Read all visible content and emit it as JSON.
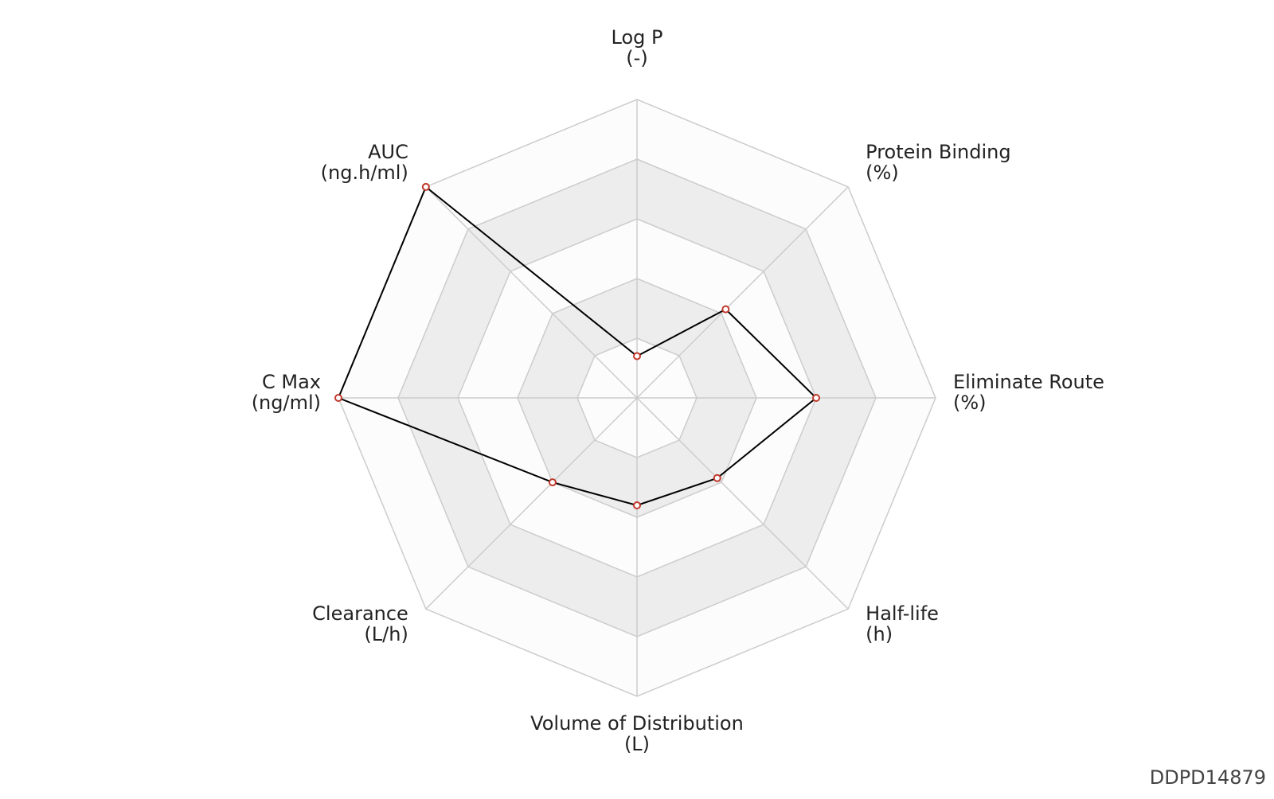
{
  "chart_data": {
    "type": "radar",
    "categories": [
      "Log P",
      "Protein Binding",
      "Eliminate Route",
      "Half-life",
      "Volume of Distribution",
      "Clearance",
      "C Max",
      "AUC"
    ],
    "units": [
      "(-)",
      "(%)",
      "(%)",
      "(h)",
      "(L)",
      "(L/h)",
      "(ng/ml)",
      "(ng.h/ml)"
    ],
    "values": [
      0.7,
      2.1,
      3,
      1.9,
      1.8,
      2,
      5,
      5
    ],
    "rlim": [
      0,
      5
    ],
    "rticks": [
      1,
      2,
      3,
      4,
      5
    ],
    "color": "#000000",
    "marker_color": "#c0392b",
    "footnote": "DDPD14879"
  }
}
